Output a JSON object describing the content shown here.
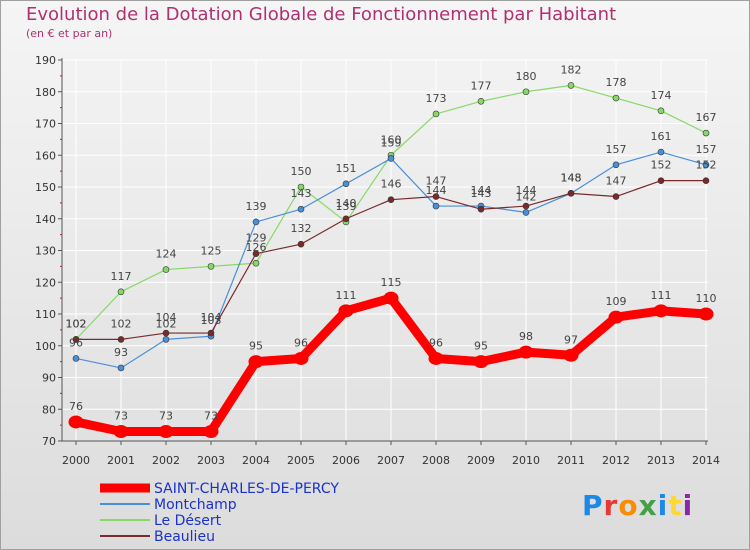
{
  "header": {
    "title": "Evolution de la Dotation Globale de Fonctionnement par Habitant",
    "subtitle": "(en € et par an)"
  },
  "logo": {
    "text": "Proxiti",
    "colors": [
      "#1e88e5",
      "#e53935",
      "#fb8c00",
      "#43a047",
      "#1e88e5",
      "#fdd835",
      "#8e24aa"
    ]
  },
  "chart_data": {
    "type": "line",
    "title": "Evolution de la Dotation Globale de Fonctionnement par Habitant",
    "subtitle": "(en € et par an)",
    "xlabel": "",
    "ylabel": "",
    "x": [
      2000,
      2001,
      2002,
      2003,
      2004,
      2005,
      2006,
      2007,
      2008,
      2009,
      2010,
      2011,
      2012,
      2013,
      2014
    ],
    "ylim": [
      70,
      190
    ],
    "yticks": [
      70,
      80,
      90,
      100,
      110,
      120,
      130,
      140,
      150,
      160,
      170,
      180,
      190
    ],
    "grid": true,
    "legend": "bottom-left",
    "series": [
      {
        "name": "SAINT-CHARLES-DE-PERCY",
        "color": "#ff0000",
        "values": [
          76,
          73,
          73,
          73,
          95,
          96,
          111,
          115,
          96,
          95,
          98,
          97,
          109,
          111,
          110
        ]
      },
      {
        "name": "Montchamp",
        "color": "#4a90d9",
        "values": [
          96,
          93,
          102,
          103,
          139,
          143,
          151,
          159,
          144,
          144,
          142,
          148,
          157,
          161,
          157
        ]
      },
      {
        "name": "Le Désert",
        "color": "#88d868",
        "values": [
          102,
          117,
          124,
          125,
          126,
          150,
          139,
          160,
          173,
          177,
          180,
          182,
          178,
          174,
          167
        ]
      },
      {
        "name": "Beaulieu",
        "color": "#7a2a2a",
        "values": [
          102,
          102,
          104,
          104,
          129,
          132,
          140,
          146,
          147,
          143,
          144,
          148,
          147,
          152,
          152
        ]
      }
    ]
  }
}
